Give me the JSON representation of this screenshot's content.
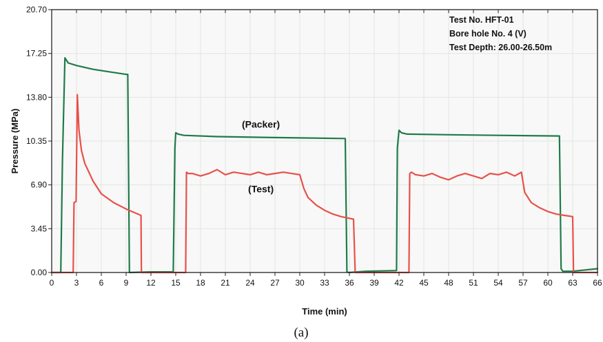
{
  "chart_data": {
    "type": "line",
    "xlabel": "Time (min)",
    "ylabel": "Pressure (MPa)",
    "xlim": [
      0,
      66
    ],
    "ylim": [
      0,
      20.7
    ],
    "x_ticks": [
      0,
      3,
      6,
      9,
      12,
      15,
      18,
      21,
      24,
      27,
      30,
      33,
      36,
      39,
      42,
      45,
      48,
      51,
      54,
      57,
      60,
      63,
      66
    ],
    "x_tick_labels": [
      "0",
      "3",
      "6",
      "9",
      "12",
      "15",
      "18",
      "21",
      "24",
      "27",
      "30",
      "33",
      "36",
      "39",
      "42",
      "45",
      "48",
      "51",
      "54",
      "57",
      "60",
      "63",
      "66"
    ],
    "y_ticks": [
      0,
      3.45,
      6.9,
      10.35,
      13.8,
      17.25,
      20.7
    ],
    "y_tick_labels": [
      "0.00",
      "3.45",
      "6.90",
      "10.35",
      "13.80",
      "17.25",
      "20.70"
    ],
    "grid": true,
    "info_box": {
      "position": "top-right",
      "lines": [
        "Test No. HFT-01",
        "Bore hole No. 4 (V)",
        "Test Depth: 26.00-26.50m"
      ]
    },
    "annotations": [
      {
        "text": "(Packer)",
        "x": 25.3,
        "y": 11.4
      },
      {
        "text": "(Test)",
        "x": 25.3,
        "y": 6.3
      }
    ],
    "caption": "(a)",
    "series": [
      {
        "color": "#1f7a4a",
        "x": [
          0,
          1.1,
          1.3,
          1.6,
          2.0,
          3.0,
          5.0,
          7.0,
          9.0,
          9.2,
          9.4,
          12,
          14.7,
          14.9,
          15.0,
          15.3,
          16,
          20,
          25,
          30,
          35.5,
          35.7,
          35.9,
          38,
          41.7,
          41.8,
          42.0,
          42.3,
          43,
          48,
          54,
          61.4,
          61.6,
          61.8,
          63,
          66
        ],
        "y": [
          0,
          0,
          8.8,
          16.9,
          16.5,
          16.3,
          16.0,
          15.8,
          15.6,
          15.6,
          0,
          0.05,
          0.05,
          9.8,
          11.0,
          10.9,
          10.8,
          10.7,
          10.65,
          10.6,
          10.55,
          0.05,
          0,
          0.1,
          0.15,
          9.8,
          11.2,
          11.0,
          10.9,
          10.85,
          10.8,
          10.75,
          0.3,
          0.1,
          0.1,
          0.3
        ]
      },
      {
        "color": "#e8504a",
        "x": [
          0,
          2.6,
          2.7,
          2.95,
          3.1,
          3.3,
          3.6,
          4.0,
          5.0,
          6.0,
          7.5,
          9.0,
          10.8,
          10.85,
          11.0,
          16.2,
          16.3,
          16.5,
          17,
          18,
          19,
          20,
          21,
          22,
          23,
          24,
          25,
          26,
          27,
          28,
          29,
          30,
          30.5,
          31,
          32,
          33,
          34,
          35,
          36.5,
          36.7,
          36.9,
          43.2,
          43.3,
          43.5,
          44,
          45,
          46,
          47,
          48,
          49,
          50,
          51,
          52,
          53,
          54,
          55,
          56,
          56.8,
          57.2,
          58,
          59,
          60,
          61,
          62,
          63,
          63.1,
          63.3,
          66
        ],
        "y": [
          0,
          0,
          5.5,
          5.6,
          14.0,
          11.2,
          9.6,
          8.6,
          7.2,
          6.2,
          5.5,
          5.0,
          4.5,
          0,
          0,
          0,
          7.9,
          7.8,
          7.8,
          7.6,
          7.8,
          8.1,
          7.7,
          7.9,
          7.8,
          7.7,
          7.9,
          7.7,
          7.8,
          7.9,
          7.8,
          7.7,
          6.6,
          5.9,
          5.3,
          4.9,
          4.6,
          4.4,
          4.2,
          0,
          0,
          0,
          7.8,
          7.9,
          7.7,
          7.6,
          7.8,
          7.5,
          7.3,
          7.6,
          7.8,
          7.6,
          7.4,
          7.8,
          7.7,
          7.9,
          7.6,
          7.9,
          6.3,
          5.5,
          5.1,
          4.8,
          4.6,
          4.5,
          4.4,
          0,
          0,
          0
        ]
      }
    ]
  }
}
